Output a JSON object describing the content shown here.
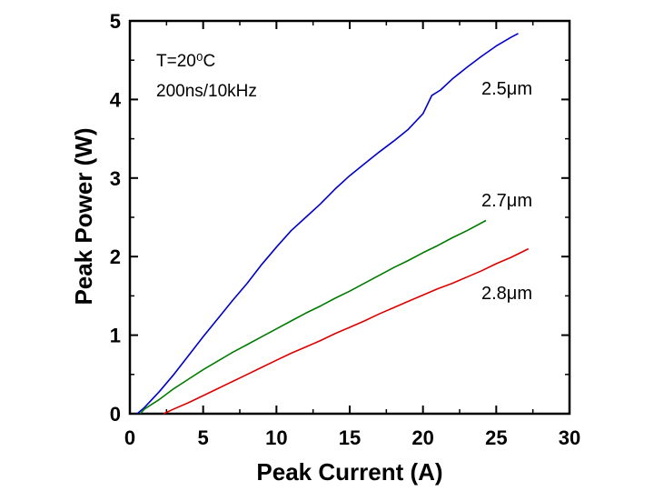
{
  "chart_data": {
    "type": "line",
    "title": "",
    "xlabel": "Peak Current (A)",
    "ylabel": "Peak Power (W)",
    "xlim": [
      0,
      30
    ],
    "ylim": [
      0,
      5
    ],
    "x_ticks": [
      "0",
      "5",
      "10",
      "15",
      "20",
      "25",
      "30"
    ],
    "y_ticks": [
      "0",
      "1",
      "2",
      "3",
      "4",
      "5"
    ],
    "grid": false,
    "annotations": [
      "T=20⁰C",
      "200ns/10kHz"
    ],
    "series": [
      {
        "name": "2.5μm",
        "color": "#0000cc",
        "x": [
          0.5,
          1.0,
          2.0,
          3.0,
          4.0,
          5.0,
          6.0,
          7.0,
          8.0,
          9.0,
          10.0,
          11.0,
          12.0,
          13.0,
          14.0,
          15.0,
          16.0,
          17.0,
          18.0,
          19.0,
          20.0,
          20.6,
          21.2,
          22.0,
          23.0,
          24.0,
          25.0,
          26.0,
          26.5
        ],
        "y": [
          0.0,
          0.08,
          0.28,
          0.5,
          0.74,
          0.98,
          1.21,
          1.44,
          1.66,
          1.9,
          2.12,
          2.33,
          2.5,
          2.67,
          2.86,
          3.03,
          3.18,
          3.33,
          3.47,
          3.62,
          3.82,
          4.05,
          4.12,
          4.26,
          4.41,
          4.55,
          4.68,
          4.79,
          4.84
        ]
      },
      {
        "name": "2.7μm",
        "color": "#007a00",
        "x": [
          0.7,
          1.0,
          2.0,
          3.0,
          4.0,
          5.0,
          6.0,
          7.0,
          8.0,
          9.0,
          10.0,
          11.0,
          12.0,
          13.0,
          14.0,
          15.0,
          16.0,
          17.0,
          18.0,
          19.0,
          20.0,
          21.0,
          22.0,
          23.0,
          24.3
        ],
        "y": [
          0.0,
          0.06,
          0.18,
          0.32,
          0.44,
          0.56,
          0.67,
          0.78,
          0.88,
          0.98,
          1.08,
          1.18,
          1.28,
          1.37,
          1.47,
          1.56,
          1.66,
          1.76,
          1.86,
          1.95,
          2.05,
          2.14,
          2.24,
          2.33,
          2.46
        ]
      },
      {
        "name": "2.8μm",
        "color": "#dd0000",
        "x": [
          2.3,
          3.0,
          4.0,
          5.0,
          6.0,
          7.0,
          8.0,
          9.0,
          10.0,
          11.0,
          12.0,
          13.0,
          14.0,
          15.0,
          16.0,
          17.0,
          18.0,
          19.0,
          20.0,
          21.0,
          22.0,
          23.0,
          24.0,
          25.0,
          26.0,
          27.2
        ],
        "y": [
          0.0,
          0.06,
          0.14,
          0.23,
          0.32,
          0.41,
          0.5,
          0.59,
          0.68,
          0.77,
          0.85,
          0.93,
          1.02,
          1.1,
          1.18,
          1.27,
          1.35,
          1.43,
          1.51,
          1.59,
          1.66,
          1.74,
          1.82,
          1.91,
          1.99,
          2.1
        ]
      }
    ]
  }
}
